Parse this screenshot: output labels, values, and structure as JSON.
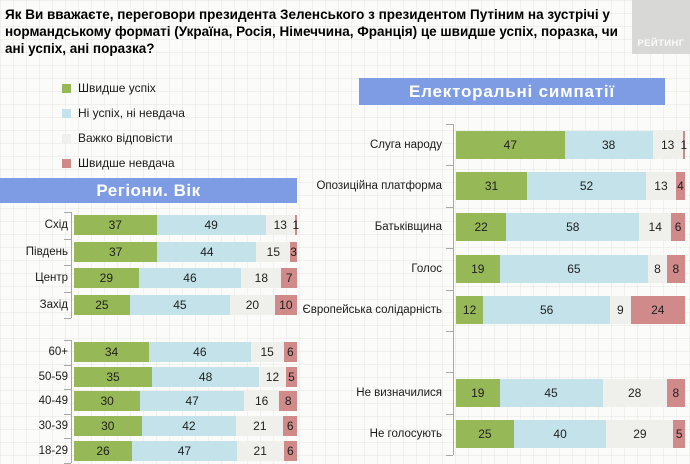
{
  "title": "Як Ви вважаєте, переговори президента Зеленського з президентом Путіним на зустрічі у нормандському форматі (Україна, Росія, Німеччина, Франція) це швидше успіх, поразка, чи ані успіх, ані поразка?",
  "logo_text": "РЕЙТИНГ",
  "panels": {
    "left_header": "Регіони. Вік",
    "right_header": "Електоральні симпатії"
  },
  "legend": [
    {
      "label": "Швидше успіх",
      "color": "#97b857"
    },
    {
      "label": "Ні успіх, ні невдача",
      "color": "#c3e2ea"
    },
    {
      "label": "Важко відповісти",
      "color": "#efefec"
    },
    {
      "label": "Швидше невдача",
      "color": "#d08a8a"
    }
  ],
  "colors": {
    "header_bg": "#7d9ce4",
    "logo_bg": "#d8d8d6",
    "axis": "#a8a8a6"
  },
  "chart_data": [
    {
      "type": "bar",
      "orientation": "horizontal",
      "stacked": true,
      "units": "percent",
      "title": "Регіони. Вік",
      "series_names": [
        "Швидше успіх",
        "Ні успіх, ні невдача",
        "Важко відповісти",
        "Швидше невдача"
      ],
      "xlim": [
        0,
        100
      ],
      "groups": [
        {
          "name": "regions",
          "categories": [
            "Схід",
            "Південь",
            "Центр",
            "Захід"
          ],
          "rows": [
            [
              37,
              49,
              13,
              1
            ],
            [
              37,
              44,
              15,
              3
            ],
            [
              29,
              46,
              18,
              7
            ],
            [
              25,
              45,
              20,
              10
            ]
          ]
        },
        {
          "name": "age",
          "categories": [
            "60+",
            "50-59",
            "40-49",
            "30-39",
            "18-29"
          ],
          "rows": [
            [
              34,
              46,
              15,
              6
            ],
            [
              35,
              48,
              12,
              5
            ],
            [
              30,
              47,
              16,
              8
            ],
            [
              30,
              42,
              21,
              6
            ],
            [
              26,
              47,
              21,
              6
            ]
          ]
        }
      ]
    },
    {
      "type": "bar",
      "orientation": "horizontal",
      "stacked": true,
      "units": "percent",
      "title": "Електоральні симпатії",
      "series_names": [
        "Швидше успіх",
        "Ні успіх, ні невдача",
        "Важко відповісти",
        "Швидше невдача"
      ],
      "xlim": [
        0,
        100
      ],
      "groups": [
        {
          "name": "parties",
          "categories": [
            "Слуга народу",
            "Опозиційна платформа",
            "Батьківщина",
            "Голос",
            "Європейська солідарність",
            null,
            "Не визначилися",
            "Не голосують"
          ],
          "rows": [
            [
              47,
              38,
              13,
              1
            ],
            [
              31,
              52,
              13,
              4
            ],
            [
              22,
              58,
              14,
              6
            ],
            [
              19,
              65,
              8,
              8
            ],
            [
              12,
              56,
              9,
              24
            ],
            null,
            [
              19,
              45,
              28,
              8
            ],
            [
              25,
              40,
              29,
              5
            ]
          ]
        }
      ]
    }
  ]
}
